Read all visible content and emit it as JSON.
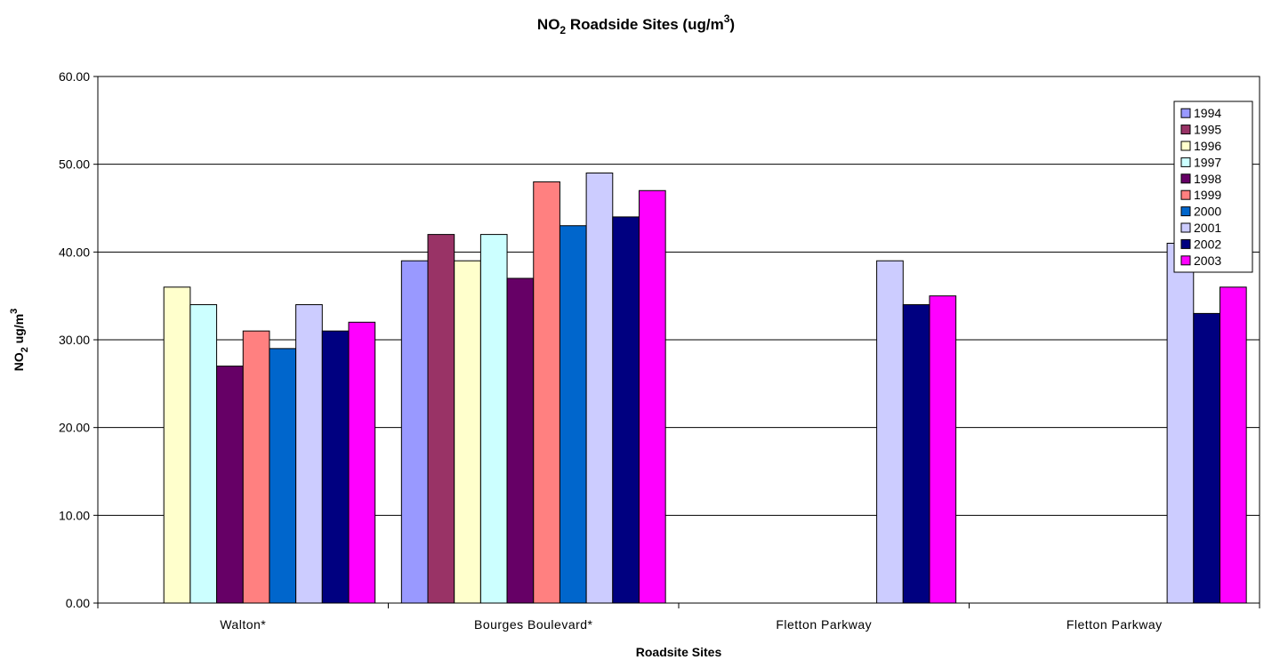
{
  "chart_data": {
    "type": "bar",
    "title": {
      "prefix": "NO",
      "sub": "2",
      "mid": " Roadside Sites (ug/m",
      "sup": "3",
      "suffix": ")"
    },
    "xlabel": "Roadsite Sites",
    "ylabel": {
      "prefix": "NO",
      "sub": "2",
      "mid": " ug/m",
      "sup": "3"
    },
    "ylim": [
      0,
      60
    ],
    "yticks": [
      "0.00",
      "10.00",
      "20.00",
      "30.00",
      "40.00",
      "50.00",
      "60.00"
    ],
    "ytick_values": [
      0,
      10,
      20,
      30,
      40,
      50,
      60
    ],
    "grid": true,
    "legend_position": "top-right",
    "categories": [
      "Walton*",
      "Bourges Boulevard*",
      "Fletton Parkway",
      "Fletton Parkway"
    ],
    "series": [
      {
        "name": "1994",
        "color": "#9999ff",
        "values": [
          null,
          39,
          null,
          null
        ]
      },
      {
        "name": "1995",
        "color": "#993366",
        "values": [
          null,
          42,
          null,
          null
        ]
      },
      {
        "name": "1996",
        "color": "#ffffcc",
        "values": [
          36,
          39,
          null,
          null
        ]
      },
      {
        "name": "1997",
        "color": "#ccffff",
        "values": [
          34,
          42,
          null,
          null
        ]
      },
      {
        "name": "1998",
        "color": "#660066",
        "values": [
          27,
          37,
          null,
          null
        ]
      },
      {
        "name": "1999",
        "color": "#ff8080",
        "values": [
          31,
          48,
          null,
          null
        ]
      },
      {
        "name": "2000",
        "color": "#0066cc",
        "values": [
          29,
          43,
          null,
          null
        ]
      },
      {
        "name": "2001",
        "color": "#ccccff",
        "values": [
          34,
          49,
          39,
          41
        ]
      },
      {
        "name": "2002",
        "color": "#000080",
        "values": [
          31,
          44,
          34,
          33
        ]
      },
      {
        "name": "2003",
        "color": "#ff00ff",
        "values": [
          32,
          47,
          35,
          36
        ]
      }
    ]
  }
}
